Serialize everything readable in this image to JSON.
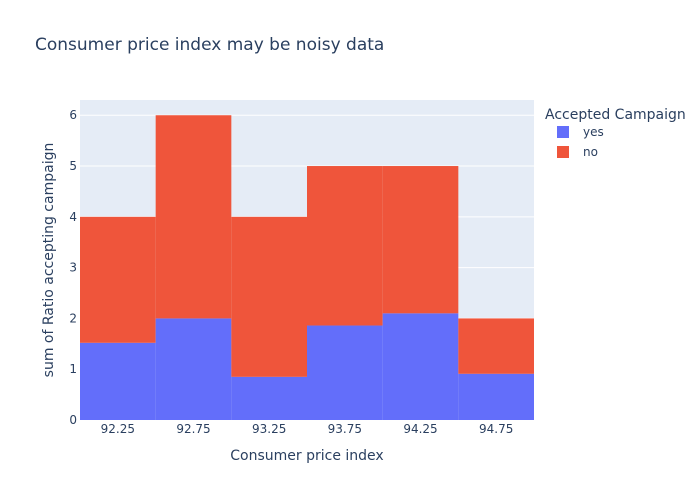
{
  "chart_data": {
    "type": "bar",
    "title": "Consumer price index may be noisy data",
    "xlabel": "Consumer price index",
    "ylabel": "sum of Ratio accepting campaign",
    "categories": [
      "92.25",
      "92.75",
      "93.25",
      "93.75",
      "94.25",
      "94.75"
    ],
    "bin_edges": [
      92.0,
      92.5,
      93.0,
      93.5,
      94.0,
      94.5,
      95.0
    ],
    "stacked": true,
    "series": [
      {
        "name": "yes",
        "values": [
          1.52,
          2.0,
          0.85,
          1.86,
          2.1,
          0.91
        ],
        "color": "#636efa"
      },
      {
        "name": "no",
        "values": [
          2.48,
          4.0,
          3.15,
          3.14,
          2.9,
          1.09
        ],
        "color": "#ef553b"
      }
    ],
    "ylim": [
      0,
      6.3
    ],
    "yticks": [
      "0",
      "1",
      "2",
      "3",
      "4",
      "5",
      "6"
    ],
    "grid": true,
    "legend": {
      "title": "Accepted Campaign",
      "position": "right"
    },
    "colors": {
      "plot_bg": "#e5ecf6",
      "grid": "#ffffff",
      "text": "#2a3f5f"
    }
  }
}
